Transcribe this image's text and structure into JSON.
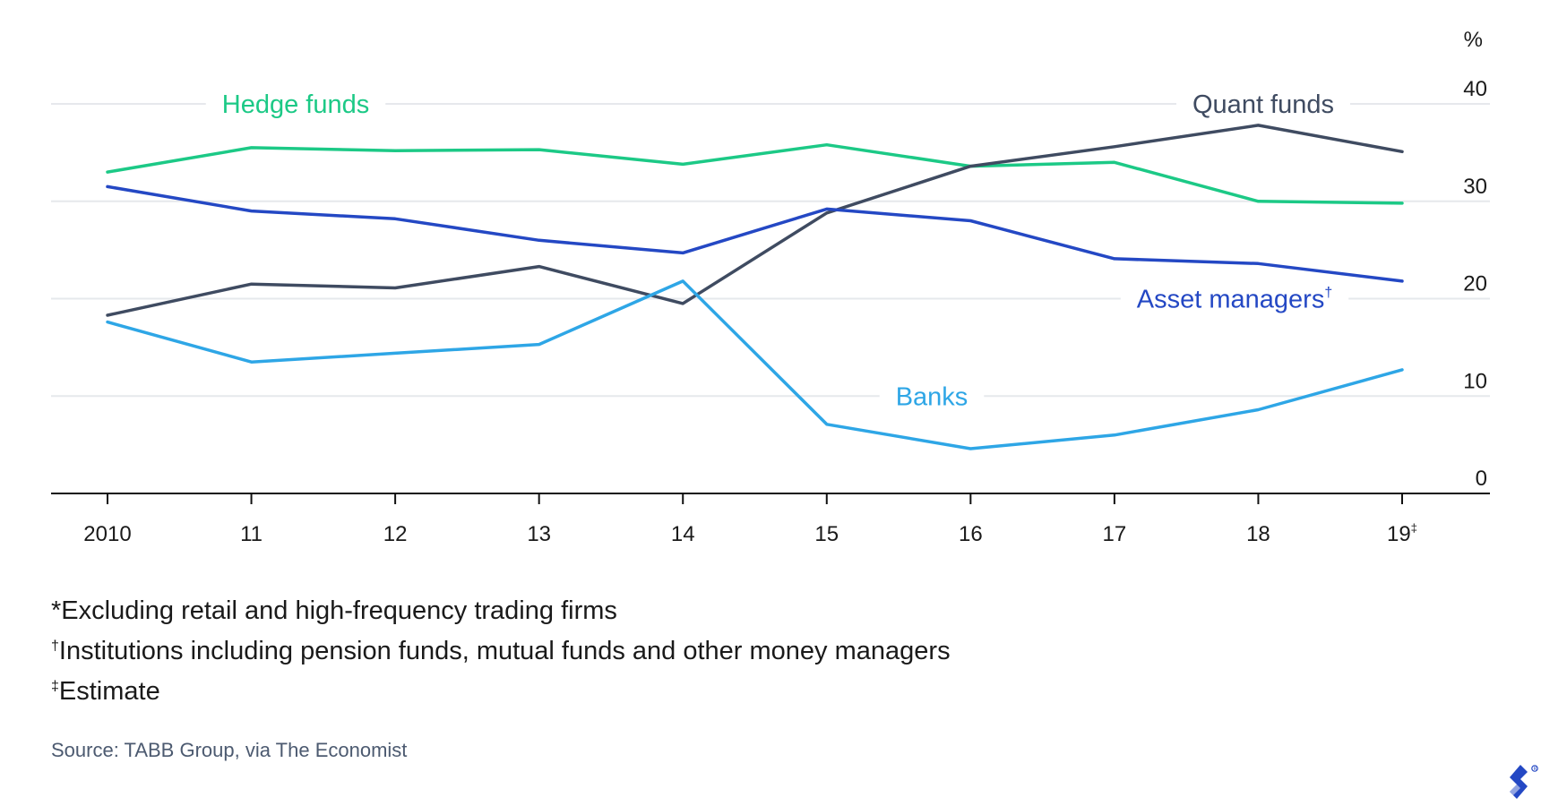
{
  "chart_data": {
    "type": "line",
    "title": "",
    "xlabel": "",
    "ylabel": "%",
    "ylim": [
      0,
      40
    ],
    "yticks": [
      0,
      10,
      20,
      30,
      40
    ],
    "grid": true,
    "y_axis_side": "right",
    "categories": [
      "2010",
      "11",
      "12",
      "13",
      "14",
      "15",
      "16",
      "17",
      "18",
      "19‡"
    ],
    "series": [
      {
        "name": "Hedge funds",
        "color": "#1cc986",
        "values": [
          33.0,
          35.5,
          35.2,
          35.3,
          33.8,
          35.8,
          33.6,
          34.0,
          30.0,
          29.8
        ]
      },
      {
        "name": "Quant funds",
        "color": "#3f4b61",
        "values": [
          18.3,
          21.5,
          21.1,
          23.3,
          19.5,
          28.8,
          33.6,
          35.6,
          37.8,
          35.1
        ]
      },
      {
        "name": "Asset managers†",
        "color": "#2448c4",
        "values": [
          31.5,
          29.0,
          28.2,
          26.0,
          24.7,
          29.2,
          28.0,
          24.1,
          23.6,
          21.8
        ]
      },
      {
        "name": "Banks",
        "color": "#2ea6e6",
        "values": [
          17.6,
          13.5,
          14.4,
          15.3,
          21.8,
          7.1,
          4.6,
          6.0,
          8.6,
          12.7
        ]
      }
    ]
  },
  "footnotes": [
    "*Excluding retail and high-frequency trading firms",
    "†Institutions including pension funds, mutual funds and other money managers",
    "‡Estimate"
  ],
  "source": "Source: TABB Group, via The Economist",
  "logo_icon": "toptal-logo-icon"
}
